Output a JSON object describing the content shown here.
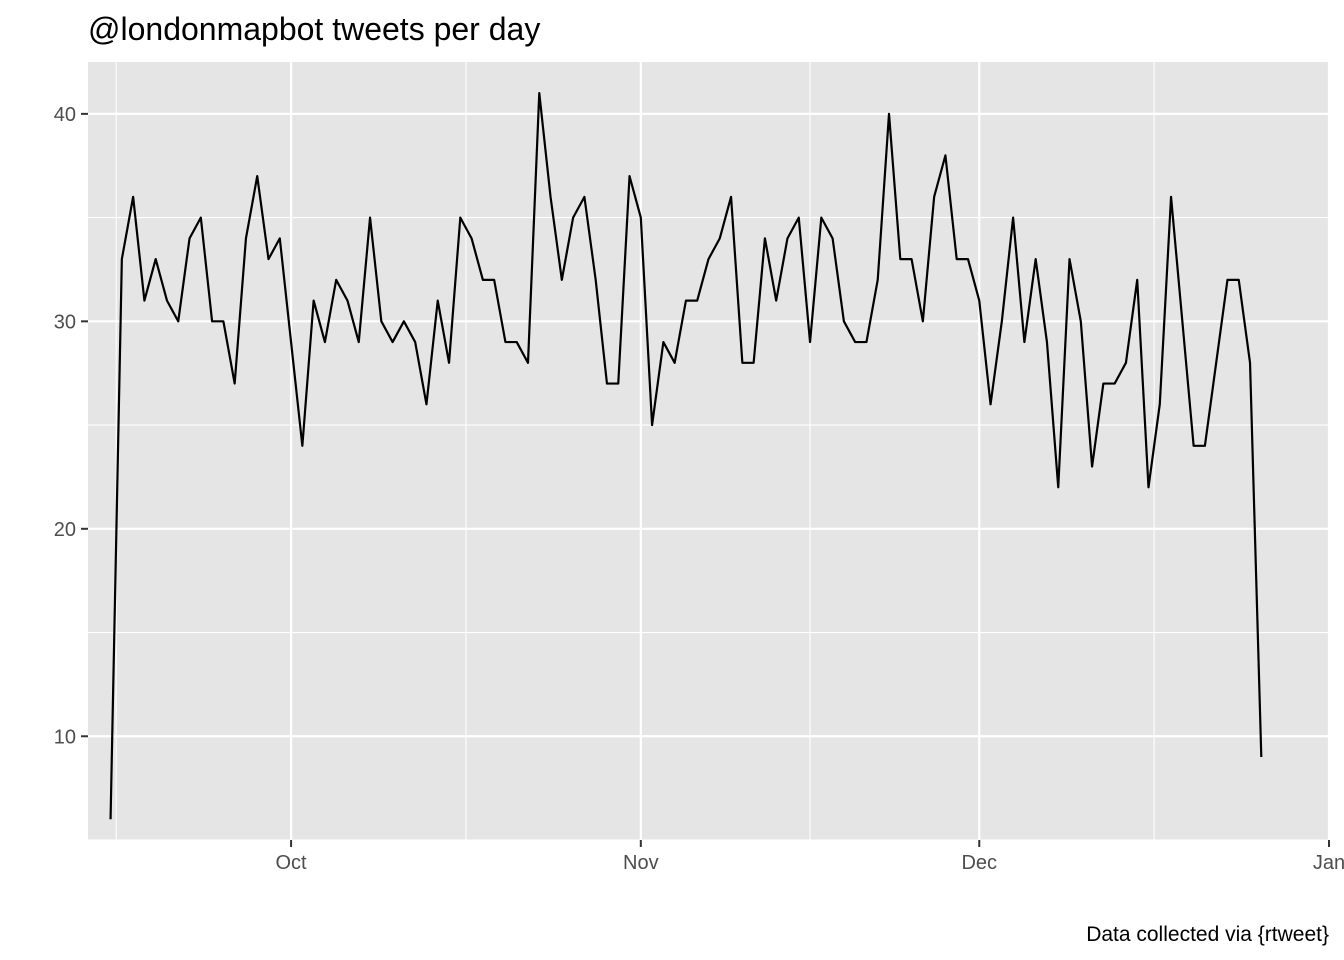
{
  "chart_data": {
    "type": "line",
    "title": "@londonmapbot tweets per day",
    "caption": "Data collected via {rtweet}",
    "xlabel": "",
    "ylabel": "",
    "x_start": "2020-09-15",
    "x_range": [
      "2020-09-13",
      "2021-01-01"
    ],
    "ylim": [
      5,
      42.5
    ],
    "y_ticks": [
      10,
      20,
      30,
      40
    ],
    "x_ticks": [
      {
        "date": "2020-10-01",
        "label": "Oct"
      },
      {
        "date": "2020-11-01",
        "label": "Nov"
      },
      {
        "date": "2020-12-01",
        "label": "Dec"
      },
      {
        "date": "2021-01-01",
        "label": "Jan"
      }
    ],
    "grid": true,
    "series": [
      {
        "values": [
          6,
          33,
          36,
          31,
          33,
          31,
          30,
          34,
          35,
          30,
          30,
          27,
          34,
          37,
          33,
          34,
          29,
          24,
          31,
          29,
          32,
          31,
          29,
          35,
          30,
          29,
          30,
          29,
          26,
          31,
          28,
          35,
          34,
          32,
          32,
          29,
          29,
          28,
          41,
          36,
          32,
          35,
          36,
          32,
          27,
          27,
          37,
          35,
          25,
          29,
          28,
          31,
          31,
          33,
          34,
          36,
          28,
          28,
          34,
          31,
          34,
          35,
          29,
          35,
          34,
          30,
          29,
          29,
          32,
          40,
          33,
          33,
          30,
          36,
          38,
          33,
          33,
          31,
          26,
          30,
          35,
          29,
          33,
          29,
          22,
          33,
          30,
          23,
          27,
          27,
          28,
          32,
          22,
          26,
          36,
          30,
          24,
          24,
          28,
          32,
          32,
          28,
          9
        ]
      }
    ]
  },
  "colors": {
    "panel_background": "#e5e5e5",
    "grid_major": "#ffffff",
    "line": "#000000",
    "tick_text": "#4d4d4d"
  }
}
